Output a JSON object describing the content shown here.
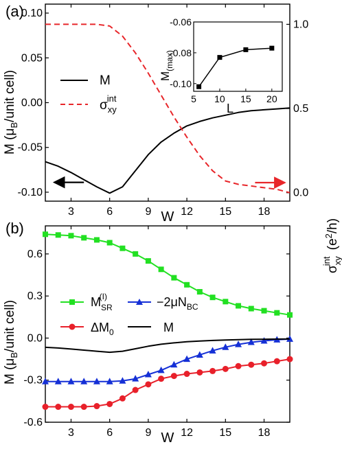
{
  "chart_data": [
    {
      "panel_label": "(a)",
      "type": "line",
      "xlabel": "W",
      "ylabel_left": "M (μB/unit cell)",
      "ylabel_right": "σxy int (e²/h)",
      "xlim": [
        1,
        20
      ],
      "ylim_left": [
        -0.11,
        0.11
      ],
      "ylim_right": [
        -0.05,
        1.12
      ],
      "xticks": [
        3,
        6,
        9,
        12,
        15,
        18
      ],
      "yticks_left": [
        -0.1,
        -0.05,
        0.0,
        0.05,
        0.1
      ],
      "ytick_labels_left": [
        "-0.10",
        "-0.05",
        "0.00",
        "0.05",
        "0.10"
      ],
      "yticks_right": [
        0.0,
        0.5,
        1.0
      ],
      "ytick_labels_right": [
        "0.0",
        "0.5",
        "1.0"
      ],
      "legend_position": "center-left",
      "series": [
        {
          "name": "M",
          "axis": "left",
          "color": "#000000",
          "style": "solid",
          "x": [
            1,
            2,
            3,
            4,
            5,
            6,
            7,
            8,
            9,
            10,
            11,
            12,
            13,
            14,
            15,
            16,
            17,
            18,
            19,
            20
          ],
          "y": [
            -0.066,
            -0.071,
            -0.078,
            -0.086,
            -0.094,
            -0.101,
            -0.094,
            -0.076,
            -0.058,
            -0.044,
            -0.034,
            -0.026,
            -0.021,
            -0.017,
            -0.014,
            -0.011,
            -0.009,
            -0.008,
            -0.007,
            -0.006
          ]
        },
        {
          "name": "σxy int",
          "axis": "right",
          "color": "#e8262a",
          "style": "dashed",
          "x": [
            1,
            2,
            3,
            4,
            5,
            6,
            7,
            8,
            9,
            10,
            11,
            12,
            13,
            14,
            15,
            16,
            17,
            18,
            19,
            20
          ],
          "y": [
            1.0,
            1.0,
            1.0,
            1.0,
            1.0,
            0.99,
            0.93,
            0.83,
            0.71,
            0.58,
            0.45,
            0.33,
            0.22,
            0.13,
            0.07,
            0.05,
            0.04,
            0.03,
            0.02,
            0.0
          ]
        }
      ],
      "inset": {
        "type": "line",
        "xlabel": "L",
        "ylabel": "M(max)",
        "xlim": [
          5,
          22
        ],
        "ylim": [
          -0.105,
          -0.06
        ],
        "xticks": [
          5,
          10,
          15,
          20
        ],
        "yticks": [
          -0.1,
          -0.08,
          -0.06
        ],
        "ytick_labels": [
          "-0.10",
          "-0.08",
          "-0.06"
        ],
        "x": [
          6,
          10,
          15,
          20
        ],
        "y": [
          -0.102,
          -0.083,
          -0.078,
          -0.077
        ]
      },
      "arrows": [
        {
          "direction": "left",
          "color": "#000000",
          "at_x": [
            1.7,
            4
          ],
          "at_y_left": -0.089
        },
        {
          "direction": "right",
          "color": "#e8262a",
          "at_x": [
            17.3,
            19.6
          ],
          "at_y_right": 0.06
        }
      ]
    },
    {
      "panel_label": "(b)",
      "type": "line",
      "xlabel": "W",
      "ylabel": "M (μB/unit cell)",
      "xlim": [
        1,
        20
      ],
      "ylim": [
        -0.6,
        0.8
      ],
      "xticks": [
        3,
        6,
        9,
        12,
        15,
        18
      ],
      "yticks": [
        -0.6,
        -0.3,
        0.0,
        0.3,
        0.6
      ],
      "ytick_labels": [
        "-0.6",
        "-0.3",
        "0.0",
        "0.3",
        "0.6"
      ],
      "legend_position": "center",
      "series": [
        {
          "name": "M_SR^(I)",
          "color": "#22e022",
          "marker": "square",
          "x": [
            1,
            2,
            3,
            4,
            5,
            6,
            7,
            8,
            9,
            10,
            11,
            12,
            13,
            14,
            15,
            16,
            17,
            18,
            19,
            20
          ],
          "y": [
            0.74,
            0.735,
            0.73,
            0.715,
            0.7,
            0.68,
            0.64,
            0.6,
            0.55,
            0.49,
            0.43,
            0.38,
            0.33,
            0.29,
            0.26,
            0.23,
            0.21,
            0.195,
            0.18,
            0.165
          ]
        },
        {
          "name": "−2μN_BC",
          "color": "#1530d6",
          "marker": "triangle",
          "x": [
            1,
            2,
            3,
            4,
            5,
            6,
            7,
            8,
            9,
            10,
            11,
            12,
            13,
            14,
            15,
            16,
            17,
            18,
            19,
            20
          ],
          "y": [
            -0.31,
            -0.31,
            -0.31,
            -0.31,
            -0.31,
            -0.31,
            -0.305,
            -0.29,
            -0.26,
            -0.23,
            -0.19,
            -0.15,
            -0.12,
            -0.09,
            -0.065,
            -0.045,
            -0.03,
            -0.02,
            -0.012,
            -0.007
          ]
        },
        {
          "name": "ΔM_0",
          "color": "#e8202a",
          "marker": "circle",
          "x": [
            1,
            2,
            3,
            4,
            5,
            6,
            7,
            8,
            9,
            10,
            11,
            12,
            13,
            14,
            15,
            16,
            17,
            18,
            19,
            20
          ],
          "y": [
            -0.49,
            -0.49,
            -0.49,
            -0.49,
            -0.485,
            -0.47,
            -0.43,
            -0.37,
            -0.33,
            -0.29,
            -0.27,
            -0.255,
            -0.245,
            -0.235,
            -0.22,
            -0.2,
            -0.19,
            -0.18,
            -0.165,
            -0.15
          ]
        },
        {
          "name": "M",
          "color": "#000000",
          "marker": "none",
          "x": [
            1,
            2,
            3,
            4,
            5,
            6,
            7,
            8,
            9,
            10,
            11,
            12,
            13,
            14,
            15,
            16,
            17,
            18,
            19,
            20
          ],
          "y": [
            -0.066,
            -0.071,
            -0.078,
            -0.086,
            -0.094,
            -0.101,
            -0.094,
            -0.076,
            -0.058,
            -0.044,
            -0.034,
            -0.026,
            -0.021,
            -0.017,
            -0.014,
            -0.011,
            -0.009,
            -0.008,
            -0.007,
            -0.006
          ]
        }
      ]
    }
  ]
}
